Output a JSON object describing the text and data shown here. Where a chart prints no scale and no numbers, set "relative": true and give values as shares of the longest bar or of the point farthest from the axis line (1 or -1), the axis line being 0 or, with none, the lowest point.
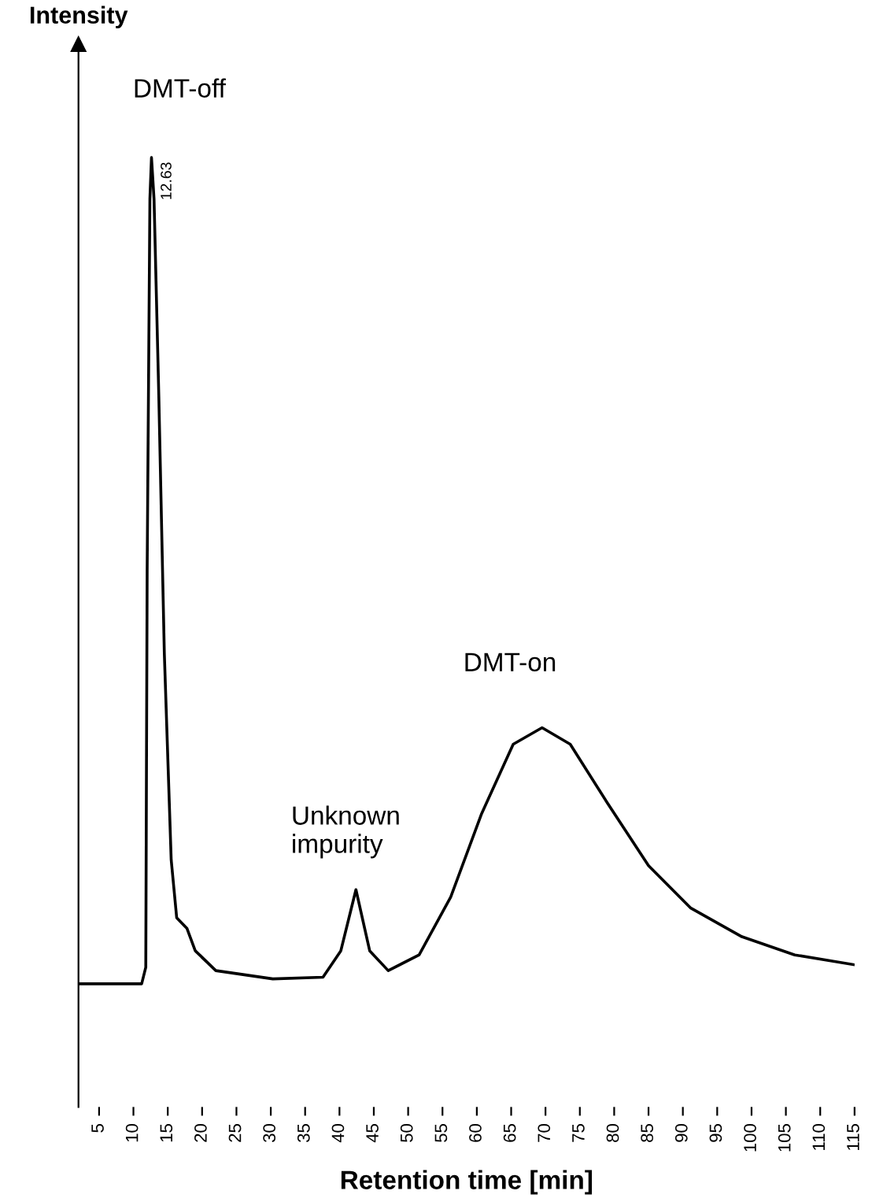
{
  "chart_data": {
    "type": "line",
    "relative": true,
    "xlabel": "Retention time [min]",
    "xlim": [
      2,
      115
    ],
    "xticks": [
      5,
      10,
      15,
      20,
      25,
      30,
      35,
      40,
      45,
      50,
      55,
      60,
      65,
      70,
      75,
      80,
      85,
      90,
      95,
      100,
      105,
      110,
      115
    ],
    "grid": false,
    "legend": false,
    "marker": "none",
    "line_style": "solid",
    "series": [
      {
        "color": "#000000",
        "x": [
          2,
          11.2,
          11.8,
          12.0,
          12.4,
          12.63,
          13.0,
          13.7,
          14.5,
          15.5,
          16.3,
          17.8,
          19.0,
          22.0,
          30.3,
          37.6,
          40.2,
          42.4,
          44.4,
          47.1,
          51.6,
          56.2,
          60.7,
          65.3,
          69.5,
          73.6,
          79.0,
          85.0,
          91.1,
          98.6,
          106.3,
          115
        ],
        "values": [
          0,
          0,
          0.02,
          0.5,
          0.95,
          1,
          0.95,
          0.71,
          0.4,
          0.15,
          0.08,
          0.067,
          0.04,
          0.016,
          0.006,
          0.008,
          0.04,
          0.114,
          0.04,
          0.016,
          0.035,
          0.105,
          0.206,
          0.29,
          0.31,
          0.29,
          0.219,
          0.143,
          0.092,
          0.057,
          0.035,
          0.023
        ]
      }
    ],
    "annotations": [
      "DMT-off",
      {
        "text": "12.63",
        "x": 12.63,
        "y": 1
      },
      "Unknown\nimpurity",
      "DMT-on",
      "Intensity"
    ]
  }
}
